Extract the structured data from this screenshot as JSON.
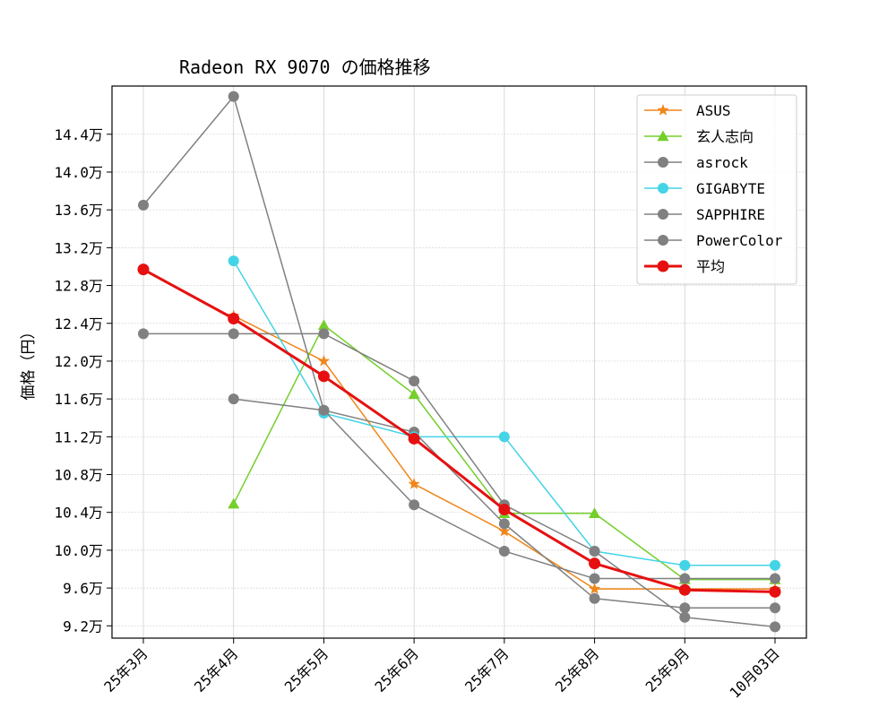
{
  "chart_data": {
    "type": "line",
    "title": "Radeon RX 9070 の価格推移",
    "xlabel": "",
    "ylabel": "価格（円）",
    "categories": [
      "25年3月",
      "25年4月",
      "25年5月",
      "25年6月",
      "25年7月",
      "25年8月",
      "25年9月",
      "10月03日"
    ],
    "ylim": [
      90700,
      149100
    ],
    "yticks": [
      92000,
      96000,
      100000,
      104000,
      108000,
      112000,
      116000,
      120000,
      124000,
      128000,
      132000,
      136000,
      140000,
      144000
    ],
    "ytick_labels": [
      "9.2万",
      "9.6万",
      "10.0万",
      "10.4万",
      "10.8万",
      "11.2万",
      "11.6万",
      "12.0万",
      "12.4万",
      "12.8万",
      "13.2万",
      "13.6万",
      "14.0万",
      "14.4万"
    ],
    "grid": true,
    "legend_position": "top-right",
    "series": [
      {
        "name": "ASUS",
        "color": "#f0861a",
        "marker": "star",
        "width": 1.5,
        "values": [
          null,
          124800,
          120000,
          107000,
          102000,
          95900,
          95900,
          95900
        ]
      },
      {
        "name": "玄人志向",
        "color": "#74cf2a",
        "marker": "triangle",
        "width": 1.5,
        "values": [
          null,
          104900,
          123800,
          116500,
          103900,
          103900,
          96900,
          96900
        ]
      },
      {
        "name": "asrock",
        "color": "#808080",
        "marker": "circle",
        "width": 1.5,
        "values": [
          136500,
          148000,
          114800,
          112500,
          102800,
          94900,
          93900,
          93900
        ]
      },
      {
        "name": "GIGABYTE",
        "color": "#43d4e6",
        "marker": "circle",
        "width": 1.5,
        "values": [
          null,
          130600,
          114500,
          112000,
          112000,
          99900,
          98400,
          98400
        ]
      },
      {
        "name": "SAPPHIRE",
        "color": "#808080",
        "marker": "circle",
        "width": 1.5,
        "values": [
          null,
          116000,
          114800,
          104800,
          99900,
          97000,
          97000,
          97000
        ]
      },
      {
        "name": "PowerColor",
        "color": "#808080",
        "marker": "circle",
        "width": 1.5,
        "values": [
          122900,
          122900,
          122900,
          117900,
          104800,
          99900,
          92900,
          91900
        ]
      },
      {
        "name": "平均",
        "color": "#e61010",
        "marker": "circle",
        "width": 3,
        "values": [
          129700,
          124500,
          118400,
          111800,
          104300,
          98600,
          95800,
          95600
        ]
      }
    ]
  }
}
